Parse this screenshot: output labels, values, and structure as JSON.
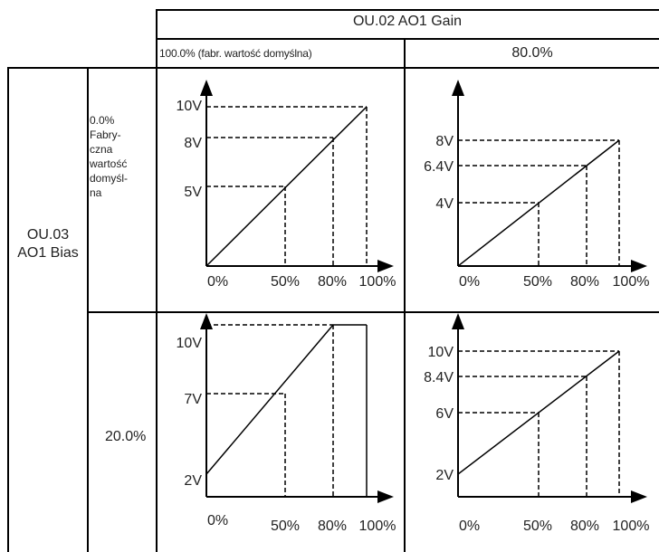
{
  "header": {
    "gain_title": "OU.02 AO1 Gain",
    "col_default": "100.0% (fabr. wartość domyślna)",
    "col_80": "80.0%"
  },
  "row_header": {
    "bias_line1": "OU.03",
    "bias_line2": "AO1 Bias"
  },
  "rows": [
    {
      "label_lines": [
        "0.0%",
        "Fabry-",
        "czna",
        "wartość",
        "domyśl-",
        "na"
      ],
      "graphs": [
        {
          "top_label": "10V",
          "y_labels": [
            "10V",
            "8V",
            "5V"
          ],
          "x_labels": [
            "0%",
            "50%",
            "80%",
            "100%"
          ]
        },
        {
          "y_labels": [
            "8V",
            "6.4V",
            "4V"
          ],
          "x_labels": [
            "0%",
            "50%",
            "80%",
            "100%"
          ]
        }
      ]
    },
    {
      "label_lines": [
        "20.0%"
      ],
      "graphs": [
        {
          "y_labels": [
            "10V",
            "7V",
            "2V"
          ],
          "x_labels": [
            "0%",
            "50%",
            "80%",
            "100%"
          ]
        },
        {
          "y_labels": [
            "10V",
            "8.4V",
            "6V",
            "2V"
          ],
          "x_labels": [
            "0%",
            "50%",
            "80%",
            "100%"
          ]
        }
      ]
    }
  ]
}
